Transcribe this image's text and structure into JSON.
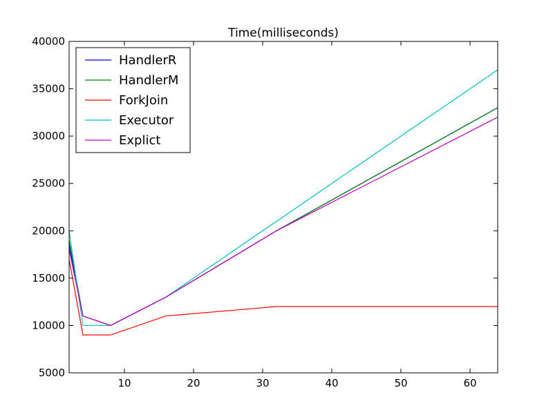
{
  "chart_data": {
    "type": "line",
    "title": "Time(milliseconds)",
    "xlabel": "",
    "ylabel": "",
    "xlim": [
      2,
      64
    ],
    "ylim": [
      5000,
      40000
    ],
    "xticks": [
      10,
      20,
      30,
      40,
      50,
      60
    ],
    "yticks": [
      5000,
      10000,
      15000,
      20000,
      25000,
      30000,
      35000,
      40000
    ],
    "grid": false,
    "legend_position": "top-left",
    "x": [
      2,
      4,
      8,
      16,
      32,
      64
    ],
    "series": [
      {
        "name": "HandlerR",
        "color": "#0000ff",
        "values": [
          18500,
          11000,
          10000,
          13000,
          20000,
          33000
        ]
      },
      {
        "name": "HandlerM",
        "color": "#008000",
        "values": [
          19000,
          11000,
          10000,
          13000,
          20000,
          33000
        ]
      },
      {
        "name": "ForkJoin",
        "color": "#ff0000",
        "values": [
          17000,
          9000,
          9000,
          11000,
          12000,
          12000
        ]
      },
      {
        "name": "Executor",
        "color": "#00bfbf",
        "values": [
          20000,
          10000,
          10000,
          13000,
          21000,
          37000
        ]
      },
      {
        "name": "Explict",
        "color": "#bf00bf",
        "values": [
          18000,
          11000,
          10000,
          13000,
          20000,
          32000
        ]
      }
    ]
  }
}
